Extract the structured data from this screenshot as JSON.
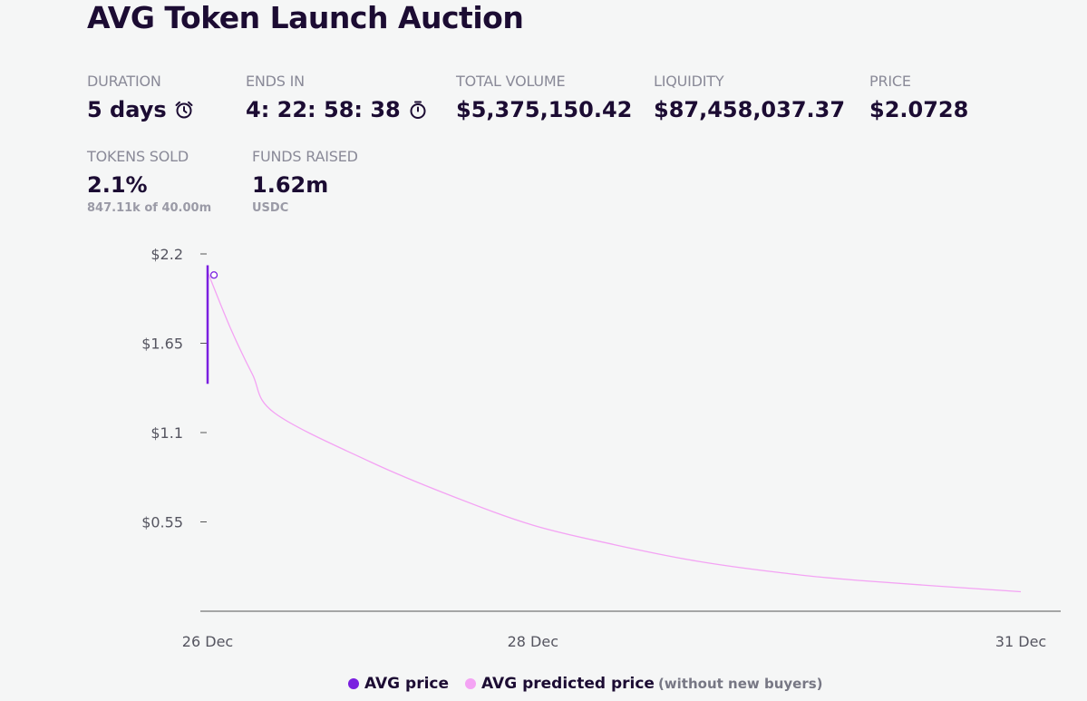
{
  "title": "AVG Token Launch Auction",
  "stats": {
    "duration": {
      "label": "DURATION",
      "value": "5 days",
      "icon": "alarm-clock-icon"
    },
    "ends_in": {
      "label": "ENDS IN",
      "value": "4: 22: 58: 38",
      "icon": "stopwatch-icon"
    },
    "total_volume": {
      "label": "TOTAL VOLUME",
      "value": "$5,375,150.42"
    },
    "liquidity": {
      "label": "LIQUIDITY",
      "value": "$87,458,037.37"
    },
    "price": {
      "label": "PRICE",
      "value": "$2.0728"
    },
    "tokens_sold": {
      "label": "TOKENS SOLD",
      "value": "2.1%",
      "sub": "847.11k of 40.00m"
    },
    "funds_raised": {
      "label": "FUNDS RAISED",
      "value": "1.62m",
      "sub": "USDC"
    }
  },
  "legend": {
    "avg_price": "AVG price",
    "avg_predicted": "AVG predicted price",
    "note": "(without new buyers)"
  },
  "colors": {
    "avg_price": "#7a1fe0",
    "avg_predicted": "#f4a3f4",
    "text": "#1c0c33",
    "axis": "#555555"
  },
  "chart_data": {
    "type": "line",
    "ylim": [
      0,
      2.2
    ],
    "yticks": [
      {
        "value": 2.2,
        "label": "$2.2"
      },
      {
        "value": 1.65,
        "label": "$1.65"
      },
      {
        "value": 1.1,
        "label": "$1.1"
      },
      {
        "value": 0.55,
        "label": "$0.55"
      }
    ],
    "xlim": [
      "2023-12-26",
      "2023-12-31"
    ],
    "xticks": [
      {
        "value": "2023-12-26",
        "label": "26 Dec"
      },
      {
        "value": "2023-12-28",
        "label": "28 Dec"
      },
      {
        "value": "2023-12-31",
        "label": "31 Dec"
      }
    ],
    "series": [
      {
        "name": "AVG price",
        "x": [
          "2023-12-26",
          "2023-12-26"
        ],
        "y": [
          1.4,
          2.13
        ]
      },
      {
        "name": "AVG predicted price",
        "x": [
          "2023-12-26",
          "2023-12-26",
          "2023-12-26",
          "2023-12-26",
          "2023-12-27",
          "2023-12-27",
          "2023-12-28",
          "2023-12-28",
          "2023-12-29",
          "2023-12-29",
          "2023-12-30",
          "2023-12-31"
        ],
        "y": [
          2.09,
          1.75,
          1.46,
          1.22,
          0.92,
          0.71,
          0.53,
          0.41,
          0.31,
          0.24,
          0.19,
          0.12
        ]
      }
    ],
    "marker": {
      "x": "2023-12-26",
      "y": 2.07
    }
  }
}
